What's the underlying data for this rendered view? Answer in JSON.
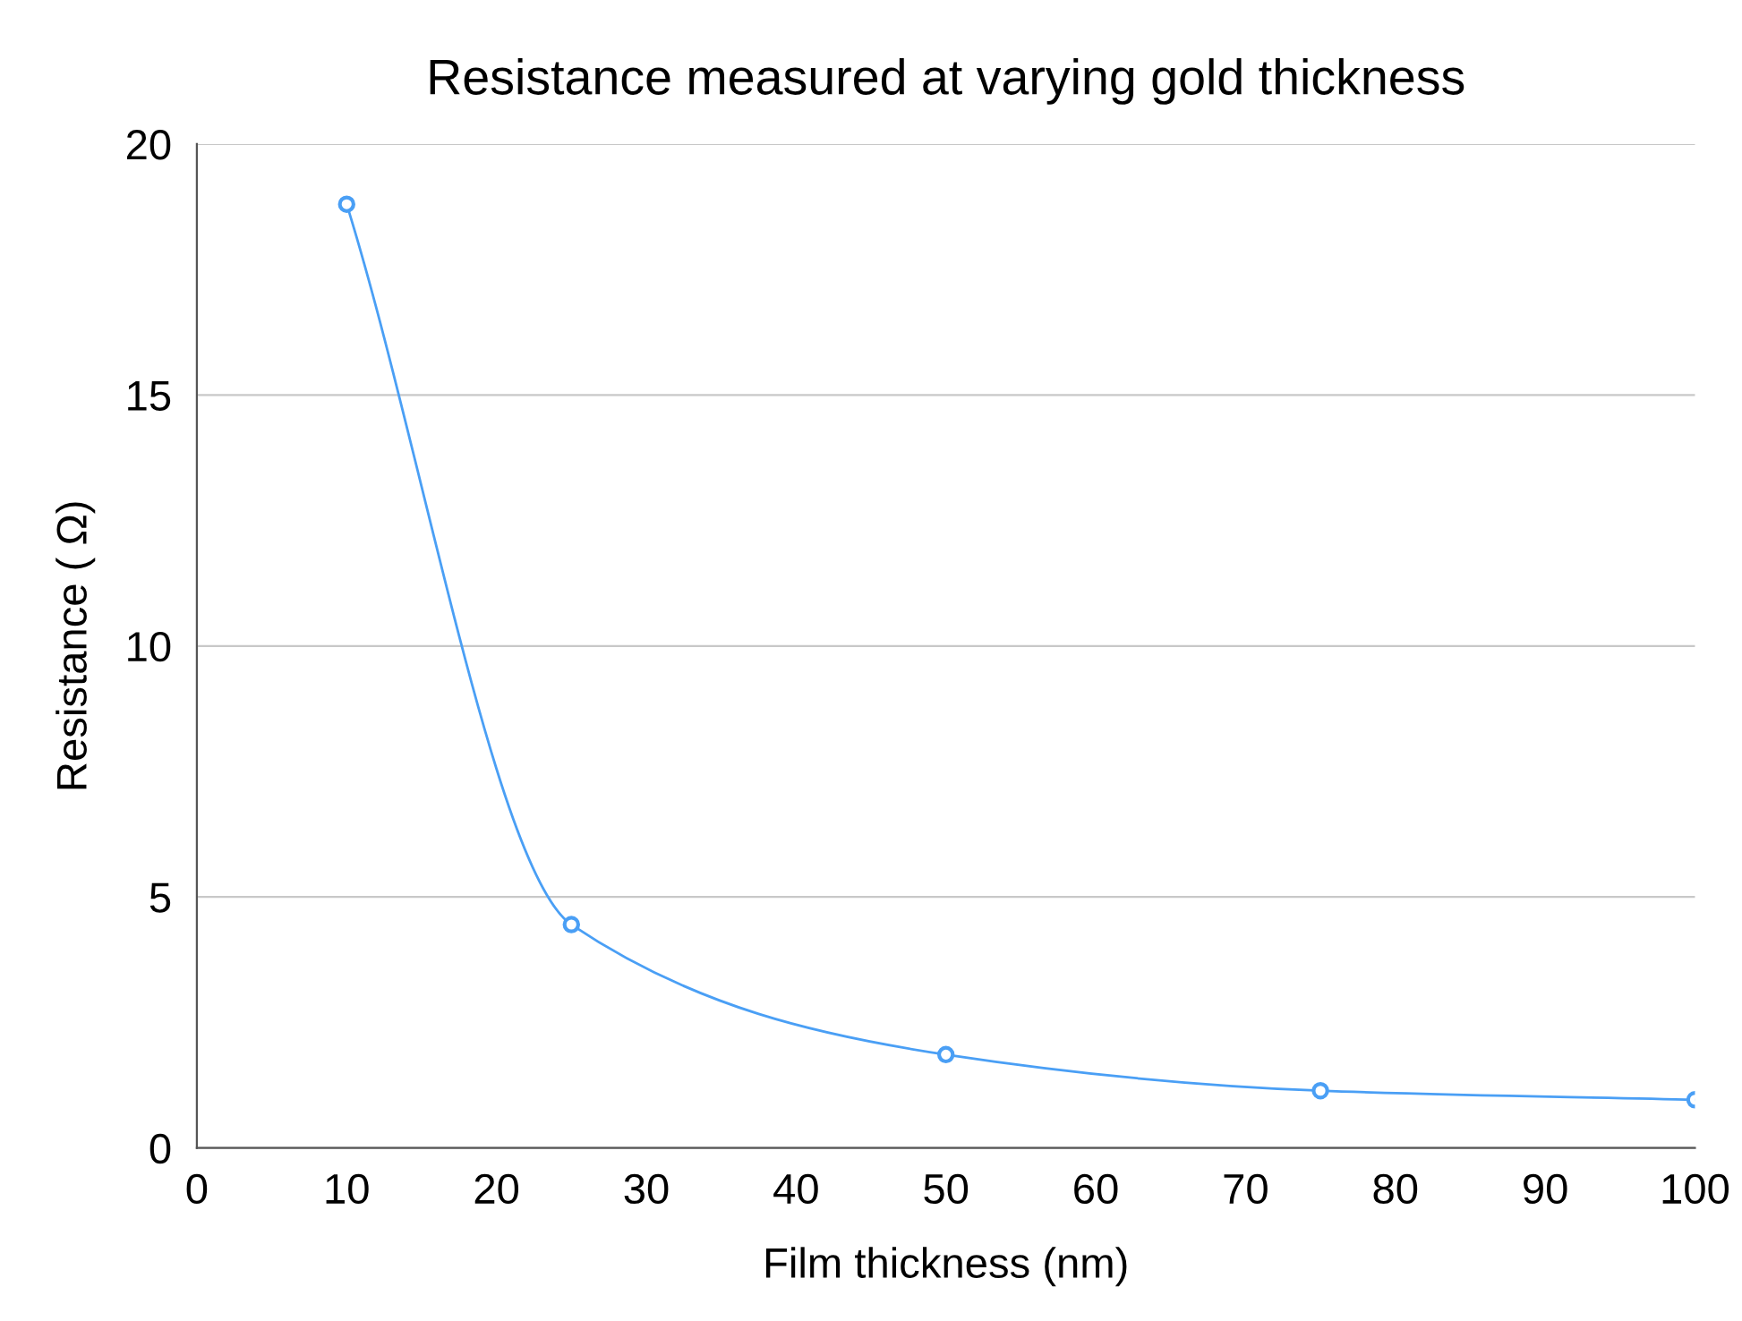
{
  "chart_data": {
    "type": "line",
    "title": "Resistance measured at varying gold thickness",
    "xlabel": "Film thickness (nm)",
    "ylabel": "Resistance ( Ω)",
    "x": [
      10,
      25,
      50,
      75,
      100
    ],
    "series": [
      {
        "color": "#4a9ff5",
        "values": [
          18.8,
          4.45,
          1.86,
          1.14,
          0.96
        ]
      }
    ],
    "xlim": [
      0,
      100
    ],
    "xticks": [
      0,
      10,
      20,
      30,
      40,
      50,
      60,
      70,
      80,
      90,
      100
    ],
    "ylim": [
      0,
      20
    ],
    "yticks": [
      0,
      5,
      10,
      15,
      20
    ],
    "grid": "y",
    "marker": "circle",
    "line_style": "solid",
    "legend": false
  }
}
